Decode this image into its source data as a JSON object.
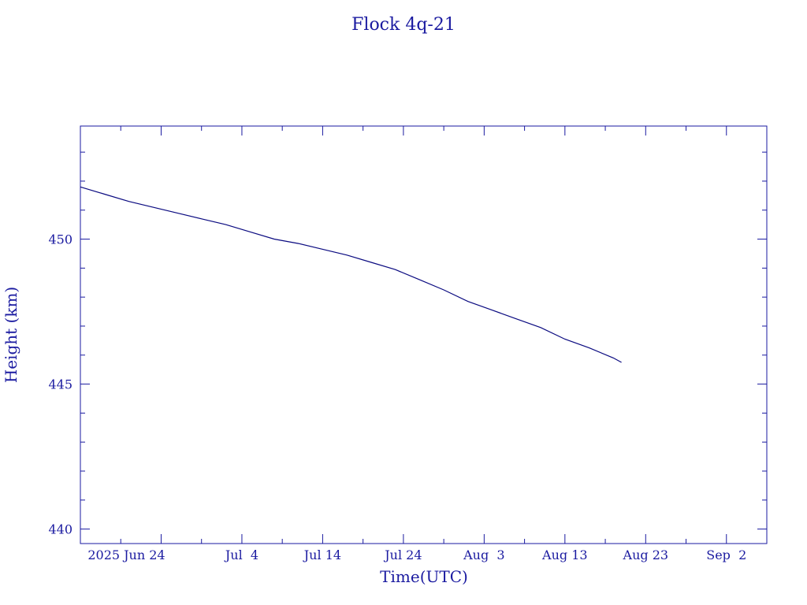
{
  "chart_data": {
    "type": "line",
    "title": "Flock 4q-21",
    "xlabel": "Time(UTC)",
    "ylabel": "Height (km)",
    "x_unit": "date",
    "xlim": [
      "2025-06-14",
      "2025-09-07"
    ],
    "ylim": [
      439.5,
      453.9
    ],
    "grid": false,
    "colors": {
      "axis": "#1a1aa0",
      "text": "#1a1aa0",
      "series": "#0a0a80"
    },
    "x_ticks": [
      {
        "date": "2025-06-24",
        "label": "2025 Jun 24"
      },
      {
        "date": "2025-07-04",
        "label": "Jul  4"
      },
      {
        "date": "2025-07-14",
        "label": "Jul 14"
      },
      {
        "date": "2025-07-24",
        "label": "Jul 24"
      },
      {
        "date": "2025-08-03",
        "label": "Aug  3"
      },
      {
        "date": "2025-08-13",
        "label": "Aug 13"
      },
      {
        "date": "2025-08-23",
        "label": "Aug 23"
      },
      {
        "date": "2025-09-02",
        "label": "Sep  2"
      }
    ],
    "x_minor_ticks": [
      "2025-06-19",
      "2025-06-29",
      "2025-07-09",
      "2025-07-19",
      "2025-07-29",
      "2025-08-08",
      "2025-08-18",
      "2025-08-28"
    ],
    "y_ticks": [
      {
        "value": 440,
        "label": "440"
      },
      {
        "value": 445,
        "label": "445"
      },
      {
        "value": 450,
        "label": "450"
      }
    ],
    "y_minor_ticks": [
      441,
      442,
      443,
      444,
      446,
      447,
      448,
      449,
      451,
      452,
      453
    ],
    "series": [
      {
        "x": [
          "2025-06-14",
          "2025-06-17",
          "2025-06-20",
          "2025-06-23",
          "2025-06-26",
          "2025-06-29",
          "2025-07-02",
          "2025-07-05",
          "2025-07-08",
          "2025-07-11",
          "2025-07-14",
          "2025-07-17",
          "2025-07-20",
          "2025-07-23",
          "2025-07-26",
          "2025-07-29",
          "2025-08-01",
          "2025-08-04",
          "2025-08-07",
          "2025-08-10",
          "2025-08-13",
          "2025-08-16",
          "2025-08-19",
          "2025-08-20"
        ],
        "y": [
          451.8,
          451.55,
          451.3,
          451.1,
          450.9,
          450.7,
          450.5,
          450.25,
          450.0,
          449.85,
          449.65,
          449.45,
          449.2,
          448.95,
          448.6,
          448.25,
          447.85,
          447.55,
          447.25,
          446.95,
          446.55,
          446.25,
          445.9,
          445.75
        ]
      }
    ]
  }
}
